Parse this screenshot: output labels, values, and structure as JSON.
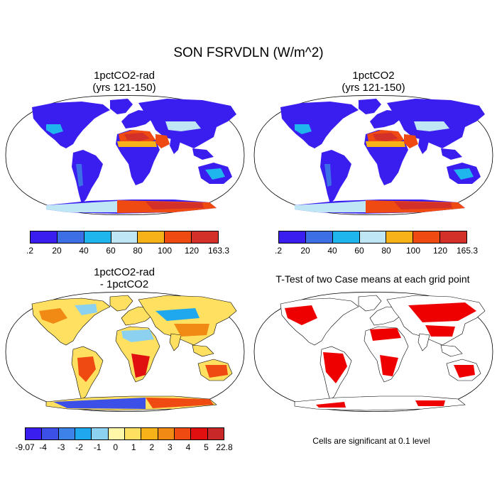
{
  "figure": {
    "title": "SON FSRVDLN (W/m^2)"
  },
  "panels": [
    {
      "id": "p1",
      "title1": "1pctCO2-rad",
      "title2": "(yrs 121-150)"
    },
    {
      "id": "p2",
      "title1": "1pctCO2",
      "title2": "(yrs 121-150)"
    },
    {
      "id": "p3",
      "title1": "1pctCO2-rad",
      "title2": "- 1pctCO2"
    },
    {
      "id": "p4",
      "title1": "T-Test of two Case means at each grid point",
      "title2": ""
    }
  ],
  "colorbars": {
    "cb1": {
      "labels": [
        ".2",
        "20",
        "40",
        "60",
        "80",
        "100",
        "120",
        "163.3"
      ],
      "colors": [
        "#3a1ef0",
        "#3c6ee6",
        "#1fb6ee",
        "#bfe6f4",
        "#f7b21a",
        "#ef4a12",
        "#d23028"
      ]
    },
    "cb2": {
      "labels": [
        ".2",
        "20",
        "40",
        "60",
        "80",
        "100",
        "120",
        "165.3"
      ],
      "colors": [
        "#3a1ef0",
        "#3c6ee6",
        "#1fb6ee",
        "#bfe6f4",
        "#f7b21a",
        "#ef4a12",
        "#d23028"
      ]
    },
    "cb3": {
      "labels": [
        "-9.07",
        "-4",
        "-3",
        "-2",
        "-1",
        "0",
        "1",
        "2",
        "3",
        "4",
        "5",
        "22.8"
      ],
      "colors": [
        "#3a1ef0",
        "#3c50e8",
        "#3c82e8",
        "#1fa8ee",
        "#8cd2f0",
        "#fff7a8",
        "#ffe060",
        "#f7b21a",
        "#f08a14",
        "#ef4a12",
        "#e01010",
        "#c82828"
      ]
    }
  },
  "significance_note": "Cells are significant at 0.1 level",
  "colors": {
    "low": "#3a1ef0",
    "high": "#d23028",
    "significant": "#ee0000"
  }
}
